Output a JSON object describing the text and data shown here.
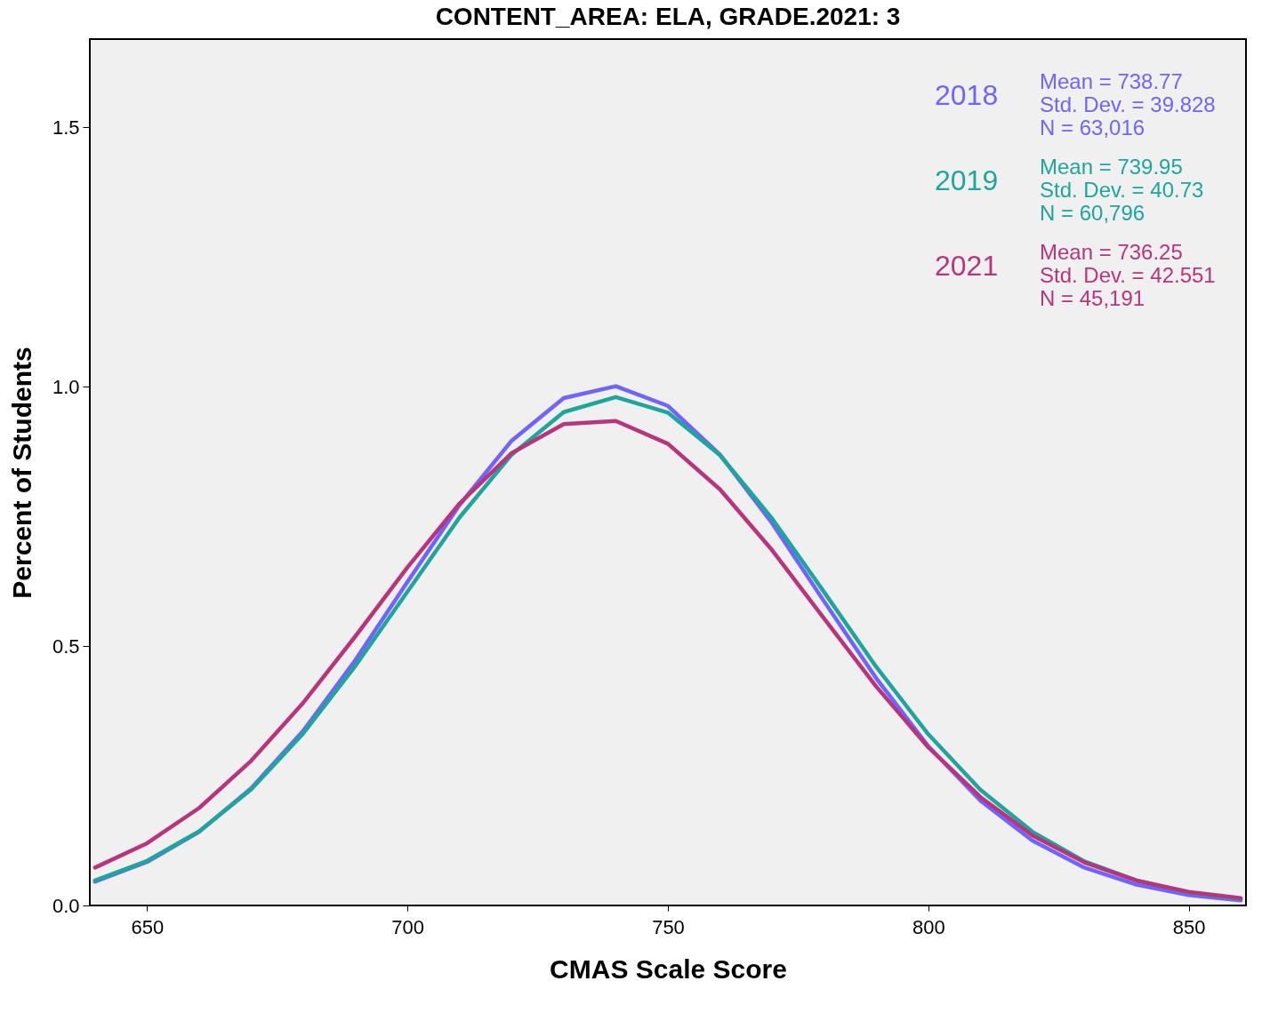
{
  "chart_data": {
    "type": "line",
    "title": "CONTENT_AREA: ELA, GRADE.2021: 3",
    "xlabel": "CMAS Scale Score",
    "ylabel": "Percent of Students",
    "x": [
      640,
      650,
      660,
      670,
      680,
      690,
      700,
      710,
      720,
      730,
      740,
      750,
      760,
      770,
      780,
      790,
      800,
      810,
      820,
      830,
      840,
      850,
      860
    ],
    "series": [
      {
        "name": "2018",
        "color": "#7163ff",
        "values": [
          0.046,
          0.084,
          0.142,
          0.226,
          0.337,
          0.473,
          0.624,
          0.772,
          0.896,
          0.978,
          1.001,
          0.963,
          0.869,
          0.737,
          0.586,
          0.438,
          0.307,
          0.202,
          0.125,
          0.073,
          0.04,
          0.02,
          0.01
        ]
      },
      {
        "name": "2019",
        "color": "#1fa59c",
        "values": [
          0.048,
          0.086,
          0.143,
          0.224,
          0.332,
          0.462,
          0.605,
          0.748,
          0.869,
          0.951,
          0.98,
          0.95,
          0.868,
          0.746,
          0.604,
          0.46,
          0.33,
          0.223,
          0.142,
          0.085,
          0.048,
          0.025,
          0.013
        ]
      },
      {
        "name": "2021",
        "color": "#b8357c",
        "values": [
          0.073,
          0.12,
          0.188,
          0.279,
          0.391,
          0.519,
          0.652,
          0.775,
          0.872,
          0.928,
          0.934,
          0.89,
          0.802,
          0.685,
          0.553,
          0.422,
          0.305,
          0.209,
          0.135,
          0.083,
          0.048,
          0.026,
          0.014
        ]
      }
    ],
    "annotations": [
      "Mean = 738.77\nStd. Dev. = 39.828\nN = 63,016",
      "Mean = 739.95\nStd. Dev. = 40.73\nN = 60,796",
      "Mean = 736.25\nStd. Dev. = 42.551\nN = 45,191"
    ],
    "xlim": [
      639,
      861
    ],
    "xticks": [
      650,
      700,
      750,
      800,
      850
    ],
    "ylim": [
      0,
      1.67
    ],
    "yticks": [
      {
        "value": 0,
        "label": "0.0"
      },
      {
        "value": 0.5,
        "label": "0.5"
      },
      {
        "value": 1,
        "label": "1.0"
      },
      1.5
    ],
    "grid": false,
    "legend": "top right",
    "marker": "none",
    "line_style": "solid"
  }
}
